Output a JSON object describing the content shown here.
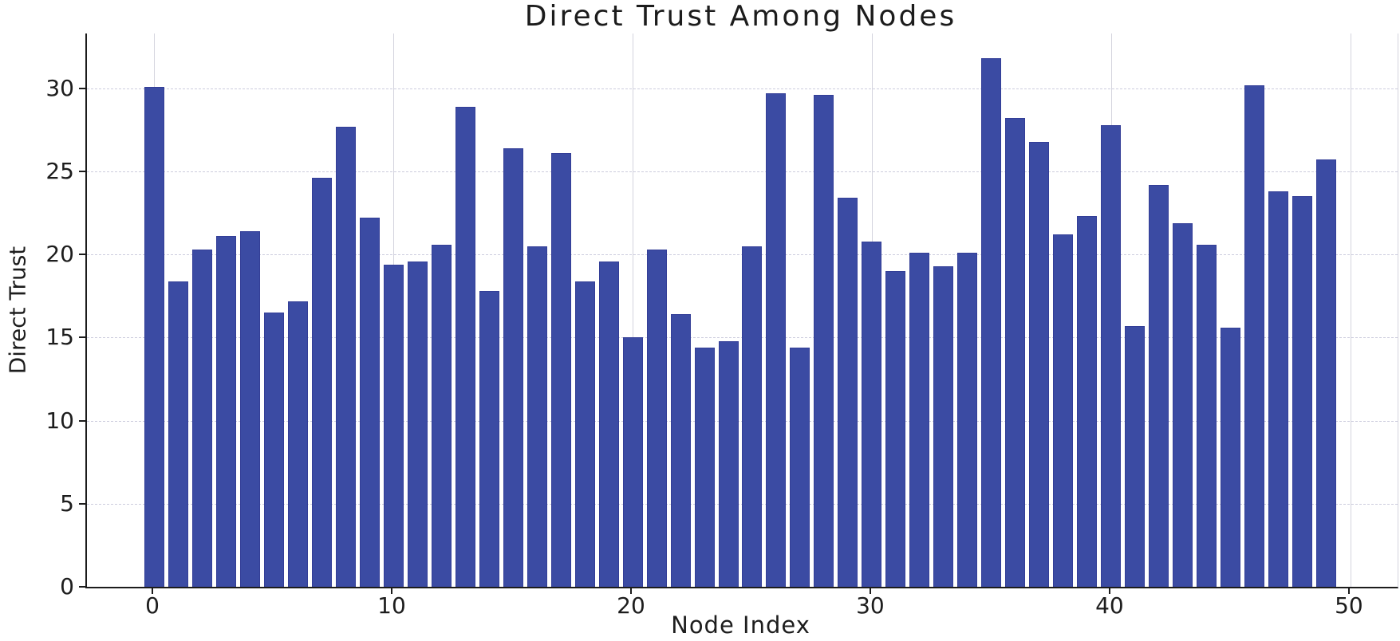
{
  "chart_data": {
    "type": "bar",
    "title": "Direct Trust Among Nodes",
    "xlabel": "Node Index",
    "ylabel": "Direct Trust",
    "categories": [
      0,
      1,
      2,
      3,
      4,
      5,
      6,
      7,
      8,
      9,
      10,
      11,
      12,
      13,
      14,
      15,
      16,
      17,
      18,
      19,
      20,
      21,
      22,
      23,
      24,
      25,
      26,
      27,
      28,
      29,
      30,
      31,
      32,
      33,
      34,
      35,
      36,
      37,
      38,
      39,
      40,
      41,
      42,
      43,
      44,
      45,
      46,
      47,
      48,
      49
    ],
    "values": [
      30.1,
      18.4,
      20.3,
      21.1,
      21.4,
      16.5,
      17.2,
      24.6,
      27.7,
      22.2,
      19.4,
      19.6,
      20.6,
      28.9,
      17.8,
      26.4,
      20.5,
      26.1,
      18.4,
      19.6,
      15.0,
      20.3,
      16.4,
      14.4,
      14.8,
      20.5,
      29.7,
      14.4,
      29.6,
      23.4,
      20.8,
      19.0,
      20.1,
      19.3,
      20.1,
      31.8,
      28.2,
      26.8,
      21.2,
      22.3,
      27.8,
      15.7,
      24.2,
      21.9,
      20.6,
      15.6,
      30.2,
      23.8,
      23.5,
      25.7
    ],
    "xticks": [
      0,
      10,
      20,
      30,
      40,
      50
    ],
    "yticks": [
      0,
      5,
      10,
      15,
      20,
      25,
      30
    ],
    "xlim": [
      -2.8,
      51.97
    ],
    "ylim": [
      0,
      33.3
    ],
    "grid": true,
    "legend": "none",
    "bar_color": "#3B4BA3",
    "bar_edge_color": "#333E97",
    "grid_color": "#ccccdd",
    "axis_color": "#1c1c1c",
    "text_color": "#1d1d1d",
    "background_color": "#ffffff"
  }
}
